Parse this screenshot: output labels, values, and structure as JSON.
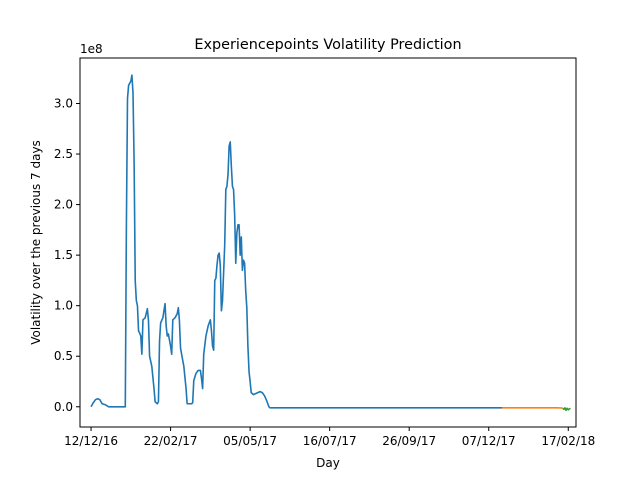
{
  "chart_data": {
    "type": "line",
    "title": "Experiencepoints Volatility Prediction",
    "xlabel": "Day",
    "ylabel": "Volatility over the previous 7 days",
    "y_offset_label": "1e8",
    "y_scale": 100000000,
    "grid": false,
    "legend": "none",
    "xlim": [
      "2016-12-02",
      "2018-02-24"
    ],
    "ylim": [
      -20000000,
      345000000
    ],
    "x_ticks": [
      {
        "date": "2016-12-12",
        "label": "12/12/16"
      },
      {
        "date": "2017-02-22",
        "label": "22/02/17"
      },
      {
        "date": "2017-05-05",
        "label": "05/05/17"
      },
      {
        "date": "2017-07-16",
        "label": "16/07/17"
      },
      {
        "date": "2017-09-26",
        "label": "26/09/17"
      },
      {
        "date": "2017-12-07",
        "label": "07/12/17"
      },
      {
        "date": "2018-02-17",
        "label": "17/02/18"
      }
    ],
    "y_ticks": [
      {
        "value": 0,
        "label": "0.0"
      },
      {
        "value": 50000000,
        "label": "0.5"
      },
      {
        "value": 100000000,
        "label": "1.0"
      },
      {
        "value": 150000000,
        "label": "1.5"
      },
      {
        "value": 200000000,
        "label": "2.0"
      },
      {
        "value": 250000000,
        "label": "2.5"
      },
      {
        "value": 300000000,
        "label": "3.0"
      }
    ],
    "series": [
      {
        "color": "#1f77b4",
        "points": [
          [
            "2016-12-12",
            0
          ],
          [
            "2016-12-14",
            4000000
          ],
          [
            "2016-12-16",
            7000000
          ],
          [
            "2016-12-18",
            8000000
          ],
          [
            "2016-12-20",
            7000000
          ],
          [
            "2016-12-22",
            3000000
          ],
          [
            "2016-12-25",
            2000000
          ],
          [
            "2016-12-28",
            0
          ],
          [
            "2017-01-02",
            0
          ],
          [
            "2017-01-05",
            0
          ],
          [
            "2017-01-10",
            0
          ],
          [
            "2017-01-12",
            0
          ],
          [
            "2017-01-13",
            180000000
          ],
          [
            "2017-01-14",
            305000000
          ],
          [
            "2017-01-15",
            318000000
          ],
          [
            "2017-01-17",
            322000000
          ],
          [
            "2017-01-18",
            328000000
          ],
          [
            "2017-01-19",
            310000000
          ],
          [
            "2017-01-20",
            240000000
          ],
          [
            "2017-01-21",
            125000000
          ],
          [
            "2017-01-22",
            105000000
          ],
          [
            "2017-01-23",
            100000000
          ],
          [
            "2017-01-24",
            75000000
          ],
          [
            "2017-01-25",
            73000000
          ],
          [
            "2017-01-26",
            70000000
          ],
          [
            "2017-01-27",
            52000000
          ],
          [
            "2017-01-28",
            86000000
          ],
          [
            "2017-01-30",
            88000000
          ],
          [
            "2017-02-01",
            97000000
          ],
          [
            "2017-02-02",
            85000000
          ],
          [
            "2017-02-03",
            50000000
          ],
          [
            "2017-02-05",
            40000000
          ],
          [
            "2017-02-07",
            18000000
          ],
          [
            "2017-02-08",
            5000000
          ],
          [
            "2017-02-10",
            3000000
          ],
          [
            "2017-02-11",
            5000000
          ],
          [
            "2017-02-12",
            65000000
          ],
          [
            "2017-02-13",
            83000000
          ],
          [
            "2017-02-15",
            88000000
          ],
          [
            "2017-02-17",
            102000000
          ],
          [
            "2017-02-18",
            80000000
          ],
          [
            "2017-02-19",
            70000000
          ],
          [
            "2017-02-20",
            72000000
          ],
          [
            "2017-02-22",
            60000000
          ],
          [
            "2017-02-23",
            52000000
          ],
          [
            "2017-02-24",
            86000000
          ],
          [
            "2017-02-26",
            88000000
          ],
          [
            "2017-02-28",
            92000000
          ],
          [
            "2017-03-01",
            98000000
          ],
          [
            "2017-03-02",
            85000000
          ],
          [
            "2017-03-03",
            58000000
          ],
          [
            "2017-03-04",
            52000000
          ],
          [
            "2017-03-06",
            40000000
          ],
          [
            "2017-03-08",
            18000000
          ],
          [
            "2017-03-09",
            3000000
          ],
          [
            "2017-03-11",
            3000000
          ],
          [
            "2017-03-13",
            3000000
          ],
          [
            "2017-03-14",
            4000000
          ],
          [
            "2017-03-15",
            26000000
          ],
          [
            "2017-03-17",
            33000000
          ],
          [
            "2017-03-19",
            36000000
          ],
          [
            "2017-03-21",
            36000000
          ],
          [
            "2017-03-22",
            28000000
          ],
          [
            "2017-03-23",
            18000000
          ],
          [
            "2017-03-24",
            52000000
          ],
          [
            "2017-03-26",
            70000000
          ],
          [
            "2017-03-28",
            80000000
          ],
          [
            "2017-03-30",
            86000000
          ],
          [
            "2017-03-31",
            75000000
          ],
          [
            "2017-04-01",
            60000000
          ],
          [
            "2017-04-02",
            56000000
          ],
          [
            "2017-04-03",
            125000000
          ],
          [
            "2017-04-04",
            127000000
          ],
          [
            "2017-04-05",
            140000000
          ],
          [
            "2017-04-06",
            150000000
          ],
          [
            "2017-04-07",
            152000000
          ],
          [
            "2017-04-08",
            140000000
          ],
          [
            "2017-04-09",
            95000000
          ],
          [
            "2017-04-10",
            105000000
          ],
          [
            "2017-04-12",
            160000000
          ],
          [
            "2017-04-13",
            215000000
          ],
          [
            "2017-04-14",
            218000000
          ],
          [
            "2017-04-15",
            230000000
          ],
          [
            "2017-04-16",
            258000000
          ],
          [
            "2017-04-17",
            262000000
          ],
          [
            "2017-04-18",
            238000000
          ],
          [
            "2017-04-19",
            218000000
          ],
          [
            "2017-04-20",
            215000000
          ],
          [
            "2017-04-21",
            190000000
          ],
          [
            "2017-04-22",
            142000000
          ],
          [
            "2017-04-23",
            172000000
          ],
          [
            "2017-04-24",
            180000000
          ],
          [
            "2017-04-25",
            180000000
          ],
          [
            "2017-04-26",
            150000000
          ],
          [
            "2017-04-27",
            168000000
          ],
          [
            "2017-04-28",
            135000000
          ],
          [
            "2017-04-29",
            145000000
          ],
          [
            "2017-04-30",
            142000000
          ],
          [
            "2017-05-01",
            115000000
          ],
          [
            "2017-05-02",
            98000000
          ],
          [
            "2017-05-03",
            60000000
          ],
          [
            "2017-05-04",
            35000000
          ],
          [
            "2017-05-05",
            25000000
          ],
          [
            "2017-05-06",
            14000000
          ],
          [
            "2017-05-08",
            12000000
          ],
          [
            "2017-05-10",
            13000000
          ],
          [
            "2017-05-12",
            14000000
          ],
          [
            "2017-05-14",
            15000000
          ],
          [
            "2017-05-16",
            14000000
          ],
          [
            "2017-05-18",
            11000000
          ],
          [
            "2017-05-20",
            6000000
          ],
          [
            "2017-05-22",
            0
          ],
          [
            "2017-05-23",
            -1000000
          ],
          [
            "2017-06-15",
            -1000000
          ],
          [
            "2017-07-16",
            -1000000
          ],
          [
            "2017-08-15",
            -1000000
          ],
          [
            "2017-09-26",
            -1000000
          ],
          [
            "2017-11-01",
            -1000000
          ],
          [
            "2017-12-07",
            -1000000
          ],
          [
            "2017-12-19",
            -1000000
          ]
        ]
      },
      {
        "color": "#ff7f0e",
        "points": [
          [
            "2017-12-19",
            -1000000
          ],
          [
            "2017-12-28",
            -1000000
          ],
          [
            "2018-01-07",
            -1000000
          ],
          [
            "2018-01-17",
            -1000000
          ],
          [
            "2018-01-27",
            -1000000
          ],
          [
            "2018-02-06",
            -1000000
          ],
          [
            "2018-02-12",
            -1200000
          ]
        ]
      },
      {
        "color": "#2ca02c",
        "points": [
          [
            "2018-02-12",
            -1500000
          ],
          [
            "2018-02-13",
            -2500000
          ],
          [
            "2018-02-14",
            -1000000
          ],
          [
            "2018-02-15",
            -3500000
          ],
          [
            "2018-02-16",
            -1500000
          ],
          [
            "2018-02-17",
            -3000000
          ],
          [
            "2018-02-18",
            -2000000
          ],
          [
            "2018-02-19",
            -1500000
          ]
        ]
      }
    ]
  }
}
